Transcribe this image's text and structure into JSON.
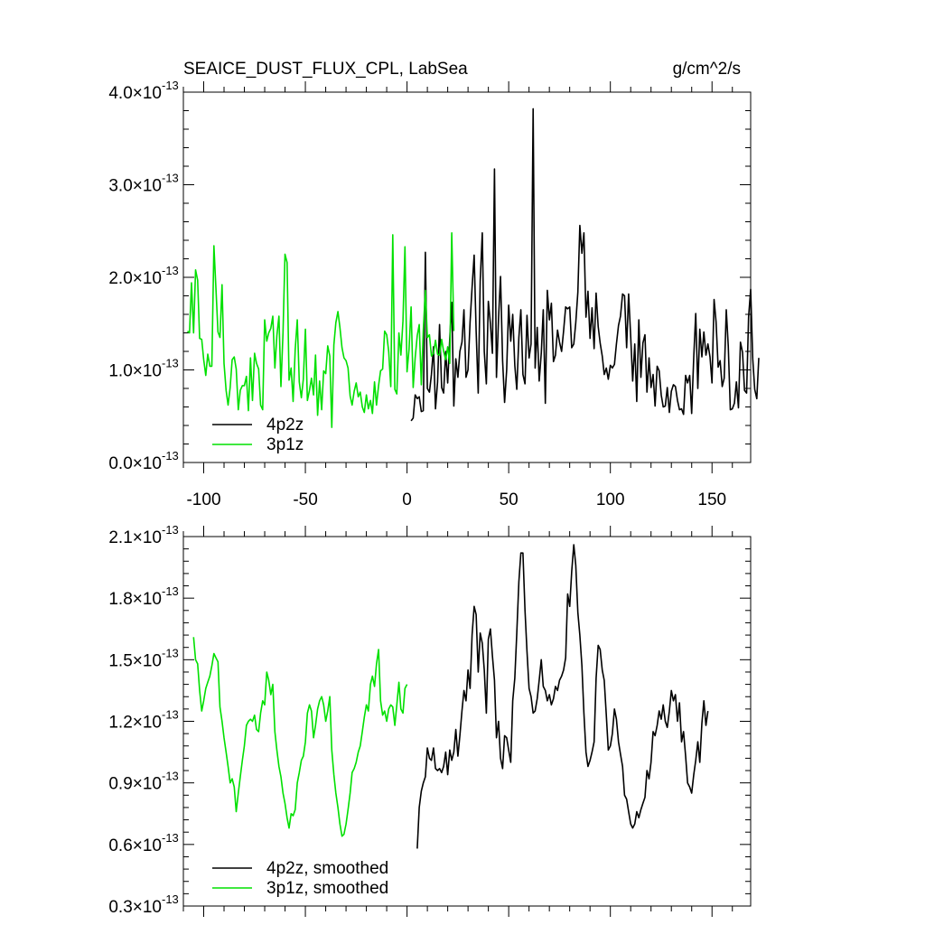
{
  "header": {
    "title": "SEAICE_DUST_FLUX_CPL, LabSea",
    "units": "g/cm^2/s"
  },
  "chart_data": [
    {
      "type": "line",
      "x_tick_labels": [
        "-100",
        "-50",
        "0",
        "50",
        "100",
        "150"
      ],
      "x_ticks": [
        -100,
        -50,
        0,
        50,
        100,
        150
      ],
      "xlim": [
        -110,
        169
      ],
      "ylim": [
        0.0,
        4.0
      ],
      "y_scale_exponent": -13,
      "y_ticks": [
        0.0,
        1.0,
        2.0,
        3.0,
        4.0
      ],
      "y_tick_mantissas": [
        "0.0",
        "1.0",
        "2.0",
        "3.0",
        "4.0"
      ],
      "y_tick_base": "×10",
      "y_tick_exponent": "-13",
      "grid": false,
      "legend_position": "bottom-left",
      "series": [
        {
          "name": "4p2z",
          "color": "#000000",
          "x_start": 2,
          "values": [
            0.45,
            0.48,
            0.73,
            0.69,
            0.71,
            0.55,
            0.56,
            2.27,
            0.8,
            0.76,
            0.95,
            1.25,
            0.58,
            0.87,
            1.49,
            0.81,
            0.75,
            1.2,
            0.86,
            1.34,
            1.73,
            0.61,
            1.12,
            0.92,
            1.2,
            1.3,
            1.65,
            0.92,
            1.0,
            1.52,
            1.89,
            2.24,
            1.42,
            0.75,
            1.96,
            2.48,
            1.2,
            0.85,
            1.74,
            1.5,
            1.18,
            3.17,
            0.92,
            1.56,
            2.01,
            1.1,
            0.65,
            1.0,
            1.7,
            1.31,
            1.6,
            1.05,
            0.79,
            1.35,
            1.65,
            0.95,
            0.85,
            1.59,
            1.13,
            1.28,
            3.82,
            1.02,
            1.46,
            0.88,
            1.18,
            1.65,
            0.64,
            1.86,
            1.54,
            1.72,
            1.09,
            1.16,
            1.43,
            1.3,
            1.2,
            1.42,
            1.68,
            1.66,
            1.68,
            1.24,
            1.28,
            1.51,
            1.84,
            2.56,
            2.26,
            2.48,
            1.57,
            1.85,
            1.34,
            1.67,
            1.23,
            1.83,
            1.47,
            1.29,
            1.15,
            0.95,
            1.02,
            0.9,
            1.05,
            1.02,
            1.06,
            1.28,
            1.48,
            1.58,
            1.82,
            1.8,
            1.24,
            1.82,
            1.36,
            0.88,
            1.28,
            0.66,
            1.54,
            0.92,
            1.29,
            1.38,
            0.76,
            1.13,
            0.81,
            0.95,
            0.61,
            1.04,
            0.99,
            0.73,
            0.6,
            0.61,
            0.81,
            0.54,
            0.77,
            0.84,
            0.82,
            0.67,
            0.57,
            0.58,
            0.52,
            0.94,
            0.86,
            0.94,
            0.53,
            1.14,
            1.61,
            0.8,
            1.44,
            1.14,
            1.41,
            1.16,
            1.28,
            1.14,
            0.86,
            1.76,
            1.52,
            1.03,
            1.1,
            0.82,
            0.91,
            1.65,
            1.26,
            0.57,
            0.58,
            0.64,
            0.87,
            0.59,
            1.3,
            1.19,
            0.78,
            0.75,
            1.57,
            1.87,
            1.12,
            0.79,
            0.69,
            1.13
          ]
        },
        {
          "name": "3p1z",
          "color": "#00e000",
          "x_start": -108,
          "values": [
            1.42,
            1.4,
            1.94,
            1.4,
            2.08,
            1.97,
            1.34,
            1.33,
            1.11,
            0.94,
            1.17,
            1.04,
            1.04,
            2.34,
            1.89,
            1.41,
            1.35,
            1.92,
            1.07,
            0.78,
            0.62,
            0.81,
            1.11,
            1.14,
            1.01,
            0.57,
            0.78,
            0.83,
            0.83,
            0.93,
            0.56,
            1.13,
            0.67,
            1.18,
            1.07,
            1.01,
            0.62,
            0.57,
            1.54,
            1.31,
            1.4,
            1.45,
            1.58,
            1.02,
            1.37,
            1.58,
            0.82,
            1.4,
            2.25,
            2.16,
            0.89,
            1.02,
            0.66,
            1.22,
            1.54,
            0.87,
            0.7,
            0.9,
            1.44,
            0.67,
            0.78,
            0.91,
            0.73,
            1.16,
            0.51,
            0.88,
            0.57,
            0.99,
            0.96,
            1.26,
            1.15,
            0.38,
            1.27,
            1.51,
            1.63,
            1.46,
            1.24,
            1.13,
            1.1,
            1.02,
            0.72,
            0.62,
            0.77,
            0.86,
            0.71,
            0.76,
            0.6,
            0.54,
            0.73,
            0.58,
            0.67,
            0.53,
            0.87,
            0.62,
            0.83,
            0.99,
            1.01,
            1.42,
            1.38,
            1.2,
            0.82,
            2.46,
            0.79,
            0.74,
            1.4,
            1.16,
            1.53,
            2.33,
            0.98,
            1.22,
            1.68,
            0.81,
            1.13,
            1.37,
            1.49,
            0.84,
            1.43,
            1.86,
            1.35,
            1.38,
            1.15,
            1.18,
            1.32,
            1.17,
            1.16,
            1.33,
            1.2,
            1.11,
            1.25,
            1.07,
            2.48,
            1.42
          ]
        }
      ]
    },
    {
      "type": "line",
      "ylim": [
        0.3,
        2.1
      ],
      "y_scale_exponent": -13,
      "y_ticks": [
        0.3,
        0.6,
        0.9,
        1.2,
        1.5,
        1.8,
        2.1
      ],
      "y_tick_mantissas": [
        "0.3",
        "0.6",
        "0.9",
        "1.2",
        "1.5",
        "1.8",
        "2.1"
      ],
      "y_tick_base": "×10",
      "y_tick_exponent": "-13",
      "xlim": [
        -110,
        169
      ],
      "grid": false,
      "legend_position": "bottom-left",
      "series": [
        {
          "name": "4p2z, smoothed",
          "color": "#000000",
          "x_start": 5,
          "values": [
            0.58,
            0.78,
            0.86,
            0.9,
            0.93,
            1.07,
            1.02,
            1.01,
            1.07,
            0.97,
            0.96,
            0.97,
            0.95,
            0.98,
            1.05,
            0.94,
            1.06,
            1.01,
            1.05,
            1.16,
            1.03,
            1.13,
            1.25,
            1.35,
            1.3,
            1.45,
            1.36,
            1.62,
            1.76,
            1.72,
            1.44,
            1.63,
            1.58,
            1.45,
            1.24,
            1.6,
            1.65,
            1.52,
            1.4,
            1.12,
            1.2,
            1.02,
            0.97,
            1.13,
            1.12,
            1.06,
            1.0,
            1.3,
            1.41,
            1.63,
            1.88,
            2.02,
            2.02,
            1.74,
            1.54,
            1.36,
            1.32,
            1.24,
            1.25,
            1.31,
            1.4,
            1.5,
            1.37,
            1.35,
            1.3,
            1.33,
            1.28,
            1.31,
            1.37,
            1.35,
            1.4,
            1.42,
            1.45,
            1.51,
            1.82,
            1.76,
            1.93,
            2.06,
            1.96,
            1.73,
            1.62,
            1.47,
            1.24,
            1.05,
            0.98,
            1.01,
            1.05,
            1.1,
            1.41,
            1.57,
            1.55,
            1.45,
            1.4,
            1.23,
            1.06,
            1.08,
            1.14,
            1.26,
            1.21,
            1.1,
            1.04,
            0.98,
            0.84,
            0.82,
            0.76,
            0.7,
            0.68,
            0.7,
            0.76,
            0.73,
            0.77,
            0.8,
            0.83,
            0.96,
            0.92,
            1.0,
            1.15,
            1.13,
            1.18,
            1.25,
            1.21,
            1.28,
            1.2,
            1.17,
            1.25,
            1.35,
            1.3,
            1.33,
            1.2,
            1.29,
            1.1,
            1.15,
            1.03,
            0.9,
            0.88,
            0.85,
            0.94,
            1.01,
            1.1,
            1.0,
            1.19,
            1.3,
            1.18,
            1.25
          ]
        },
        {
          "name": "3p1z, smoothed",
          "color": "#00e000",
          "x_start": -105,
          "values": [
            1.61,
            1.5,
            1.48,
            1.35,
            1.25,
            1.3,
            1.36,
            1.39,
            1.42,
            1.47,
            1.53,
            1.51,
            1.49,
            1.27,
            1.2,
            1.12,
            1.05,
            0.98,
            0.9,
            0.92,
            0.88,
            0.76,
            0.85,
            0.93,
            1.01,
            1.08,
            1.18,
            1.2,
            1.21,
            1.2,
            1.23,
            1.16,
            1.15,
            1.24,
            1.3,
            1.28,
            1.44,
            1.4,
            1.33,
            1.38,
            1.15,
            1.06,
            0.98,
            0.93,
            0.85,
            0.8,
            0.73,
            0.68,
            0.75,
            0.74,
            0.77,
            0.9,
            0.95,
            1.01,
            1.03,
            1.1,
            1.24,
            1.28,
            1.25,
            1.12,
            1.18,
            1.26,
            1.3,
            1.32,
            1.28,
            1.2,
            1.25,
            1.32,
            1.06,
            0.94,
            0.85,
            0.78,
            0.7,
            0.64,
            0.65,
            0.7,
            0.77,
            0.85,
            0.95,
            0.97,
            1.0,
            1.05,
            1.08,
            1.15,
            1.22,
            1.28,
            1.25,
            1.38,
            1.42,
            1.37,
            1.48,
            1.55,
            1.3,
            1.23,
            1.25,
            1.2,
            1.26,
            1.28,
            1.27,
            1.18,
            1.28,
            1.39,
            1.26,
            1.24,
            1.36,
            1.38
          ]
        }
      ]
    }
  ]
}
